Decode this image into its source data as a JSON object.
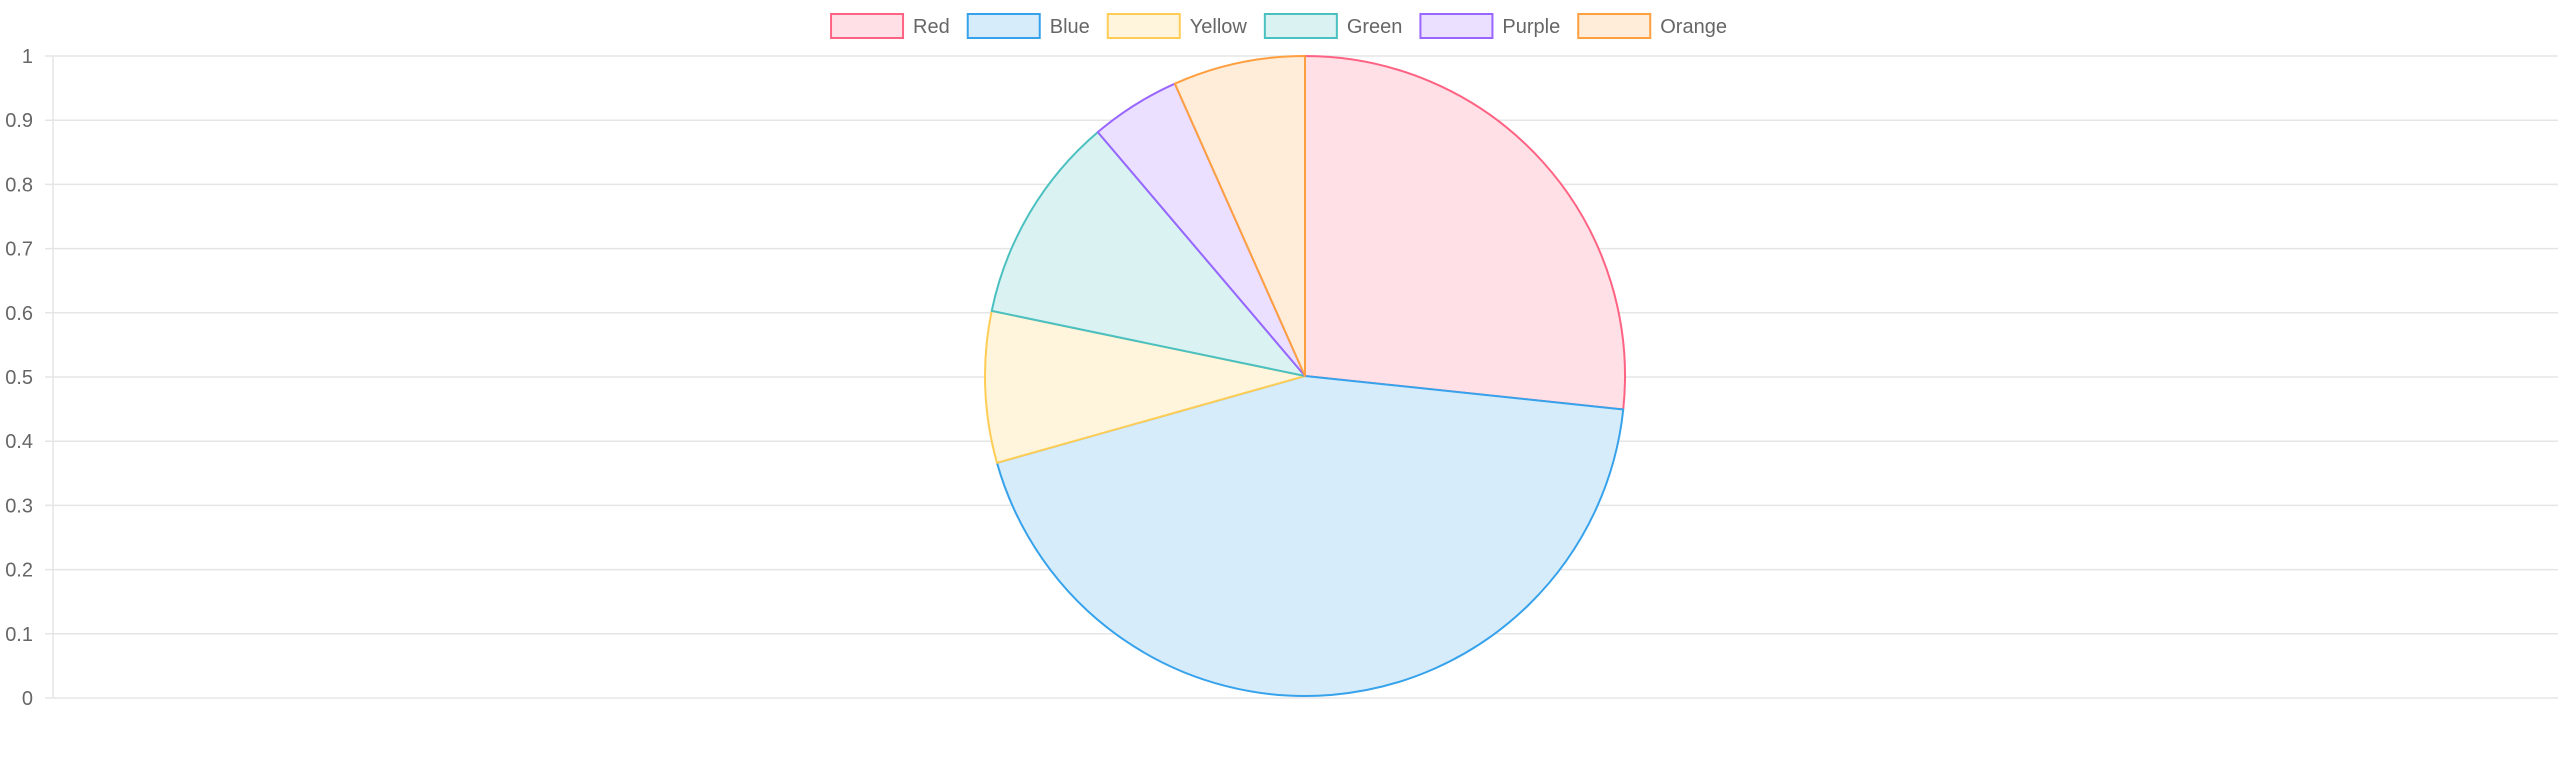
{
  "chart_data": {
    "type": "pie",
    "categories": [
      "Red",
      "Blue",
      "Yellow",
      "Green",
      "Purple",
      "Orange"
    ],
    "values": [
      27.6,
      45.5,
      7.9,
      10.9,
      4.7,
      6.9
    ],
    "colors": {
      "borders": [
        "#ff6384",
        "#36a2eb",
        "#ffcd56",
        "#4bc0c0",
        "#9966ff",
        "#ff9f40"
      ],
      "fills": [
        "#ffe0e6",
        "#d7ecfb",
        "#fff5dd",
        "#dbf2f2",
        "#ebe0ff",
        "#ffecd9"
      ],
      "grid": "#e5e5e5",
      "text": "#666666"
    },
    "y_axis": {
      "ticks": [
        "0",
        "0.1",
        "0.2",
        "0.3",
        "0.4",
        "0.5",
        "0.6",
        "0.7",
        "0.8",
        "0.9",
        "1"
      ],
      "ylim": [
        0,
        1
      ]
    },
    "grid": true,
    "legend_position": "top"
  }
}
